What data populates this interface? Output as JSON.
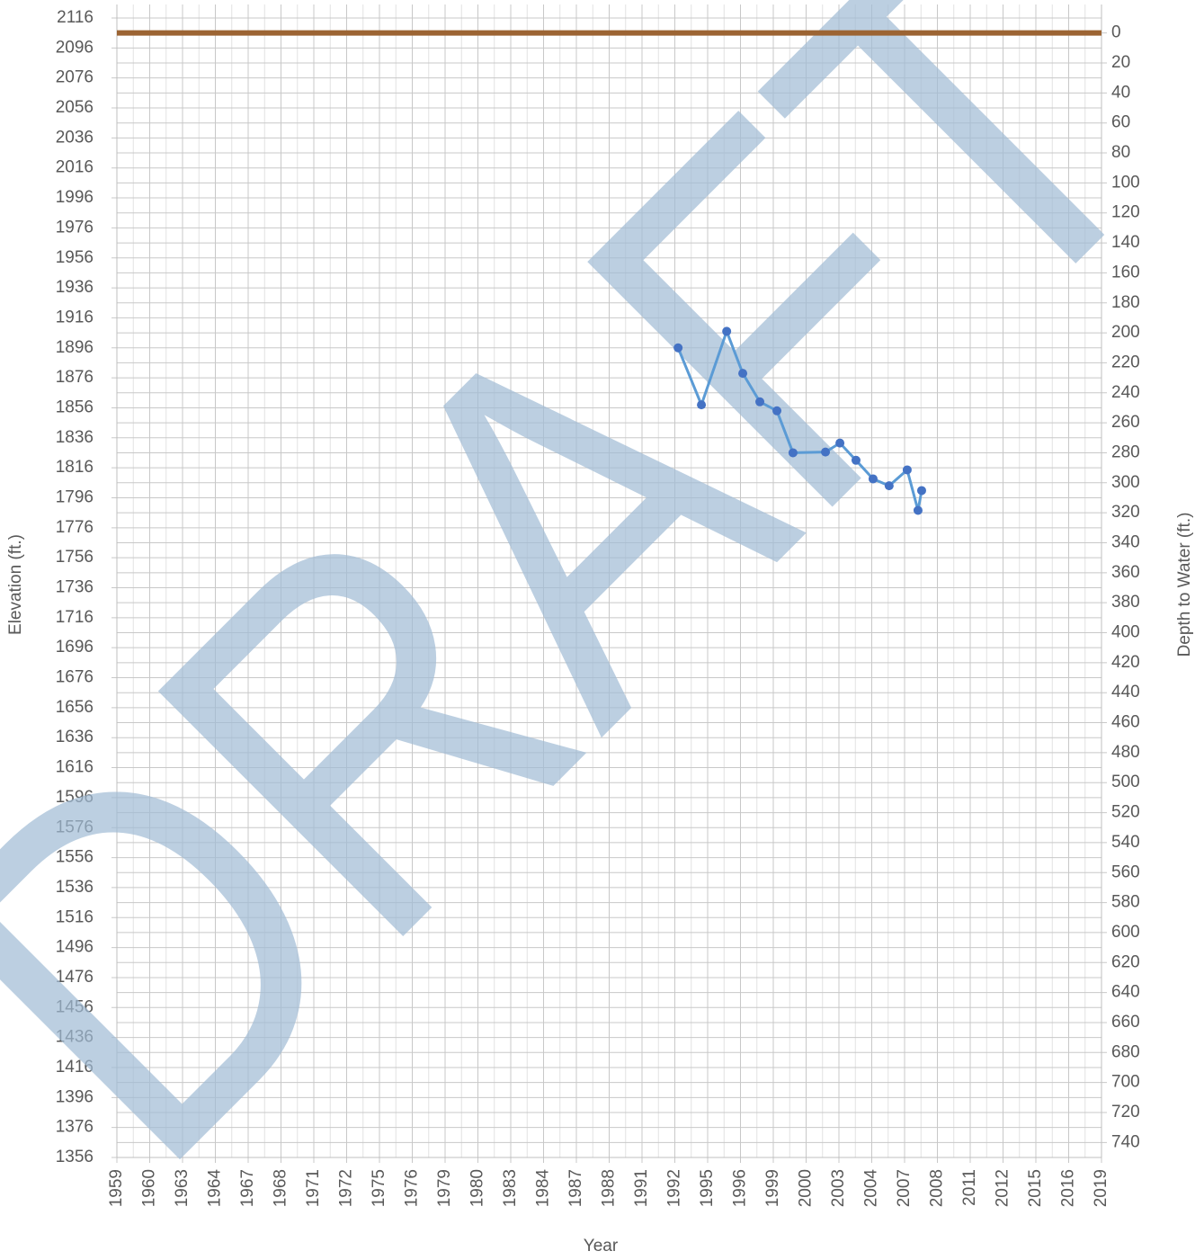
{
  "chart_data": {
    "type": "line",
    "watermark": "DRAFT",
    "xlabel": "Year",
    "ylabel": "Elevation (ft.)",
    "y2label": "Depth to Water (ft.)",
    "categories": [
      "1959",
      "1960",
      "1963",
      "1964",
      "1967",
      "1968",
      "1971",
      "1972",
      "1975",
      "1976",
      "1979",
      "1980",
      "1983",
      "1984",
      "1987",
      "1988",
      "1991",
      "1992",
      "1995",
      "1996",
      "1999",
      "2000",
      "2003",
      "2004",
      "2007",
      "2008",
      "2011",
      "2012",
      "2015",
      "2016",
      "2019"
    ],
    "xlim": [
      0,
      30
    ],
    "ylim": [
      1356,
      2116
    ],
    "yticks": [
      2116,
      2096,
      2076,
      2056,
      2036,
      2016,
      1996,
      1976,
      1956,
      1936,
      1916,
      1896,
      1876,
      1856,
      1836,
      1816,
      1796,
      1776,
      1756,
      1736,
      1716,
      1696,
      1676,
      1656,
      1636,
      1616,
      1596,
      1576,
      1556,
      1536,
      1516,
      1496,
      1476,
      1456,
      1436,
      1416,
      1396,
      1376,
      1356
    ],
    "y2lim": [
      750,
      -10
    ],
    "y2ticks": [
      0,
      20,
      40,
      60,
      80,
      100,
      120,
      140,
      160,
      180,
      200,
      220,
      240,
      260,
      280,
      300,
      320,
      340,
      360,
      380,
      400,
      420,
      440,
      460,
      480,
      500,
      520,
      540,
      560,
      580,
      600,
      620,
      640,
      660,
      680,
      700,
      720,
      740
    ],
    "grid": true,
    "series": [
      {
        "color": "#5b9bd5",
        "marker_color": "#4472c4",
        "x": [
          17.1,
          17.81,
          18.58,
          19.07,
          19.59,
          20.11,
          20.6,
          21.59,
          22.03,
          22.52,
          23.04,
          23.53,
          24.08,
          24.41,
          24.52
        ],
        "values": [
          1896,
          1858,
          1907,
          1879,
          1860,
          1854,
          1826,
          1826.5,
          1832.5,
          1821,
          1808.6,
          1804,
          1814.6,
          1787.6,
          1800.8
        ]
      },
      {
        "color": "#9c6433",
        "x": [
          0,
          30
        ],
        "values": [
          2106,
          2106
        ]
      }
    ]
  }
}
